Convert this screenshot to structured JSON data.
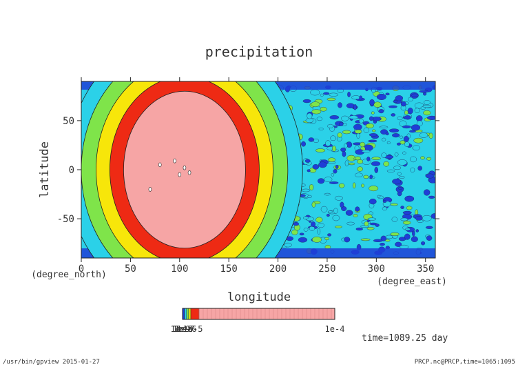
{
  "chart_data": {
    "type": "heatmap",
    "title": "precipitation",
    "xlabel": "longitude",
    "ylabel": "latitude",
    "x_unit": "(degree_east)",
    "y_unit": "(degree_north)",
    "xlim": [
      0,
      360
    ],
    "ylim": [
      -90,
      90
    ],
    "x_ticks": [
      0,
      50,
      100,
      150,
      200,
      250,
      300,
      350
    ],
    "y_ticks": [
      -50,
      0,
      50
    ],
    "fields": [
      {
        "lon": 105,
        "lat": 0,
        "rx": 62,
        "ry": 80,
        "level": 6,
        "desc": "highest-precip core"
      },
      {
        "lon": 105,
        "lat": 0,
        "rx": 76,
        "ry": 95,
        "level": 5
      },
      {
        "lon": 105,
        "lat": 0,
        "rx": 90,
        "ry": 110,
        "level": 4
      },
      {
        "lon": 105,
        "lat": 0,
        "rx": 105,
        "ry": 125,
        "level": 3
      },
      {
        "lon": 105,
        "lat": 0,
        "rx": 120,
        "ry": 140,
        "level": 2
      }
    ],
    "colorbar": {
      "colors": [
        "#1f3fd6",
        "#2bd1e8",
        "#7fe44a",
        "#f7e60a",
        "#ee2a14",
        "#f6a5a5"
      ],
      "tick_labels": [
        "1e-9",
        "1e-8",
        "1e-7",
        "1e-6",
        "1e-5",
        "1e-4"
      ]
    },
    "time_label": "time=1089.25 day"
  },
  "footer": {
    "left": "/usr/bin/gpview  2015-01-27",
    "right": "PRCP.nc@PRCP,time=1065:1095"
  }
}
